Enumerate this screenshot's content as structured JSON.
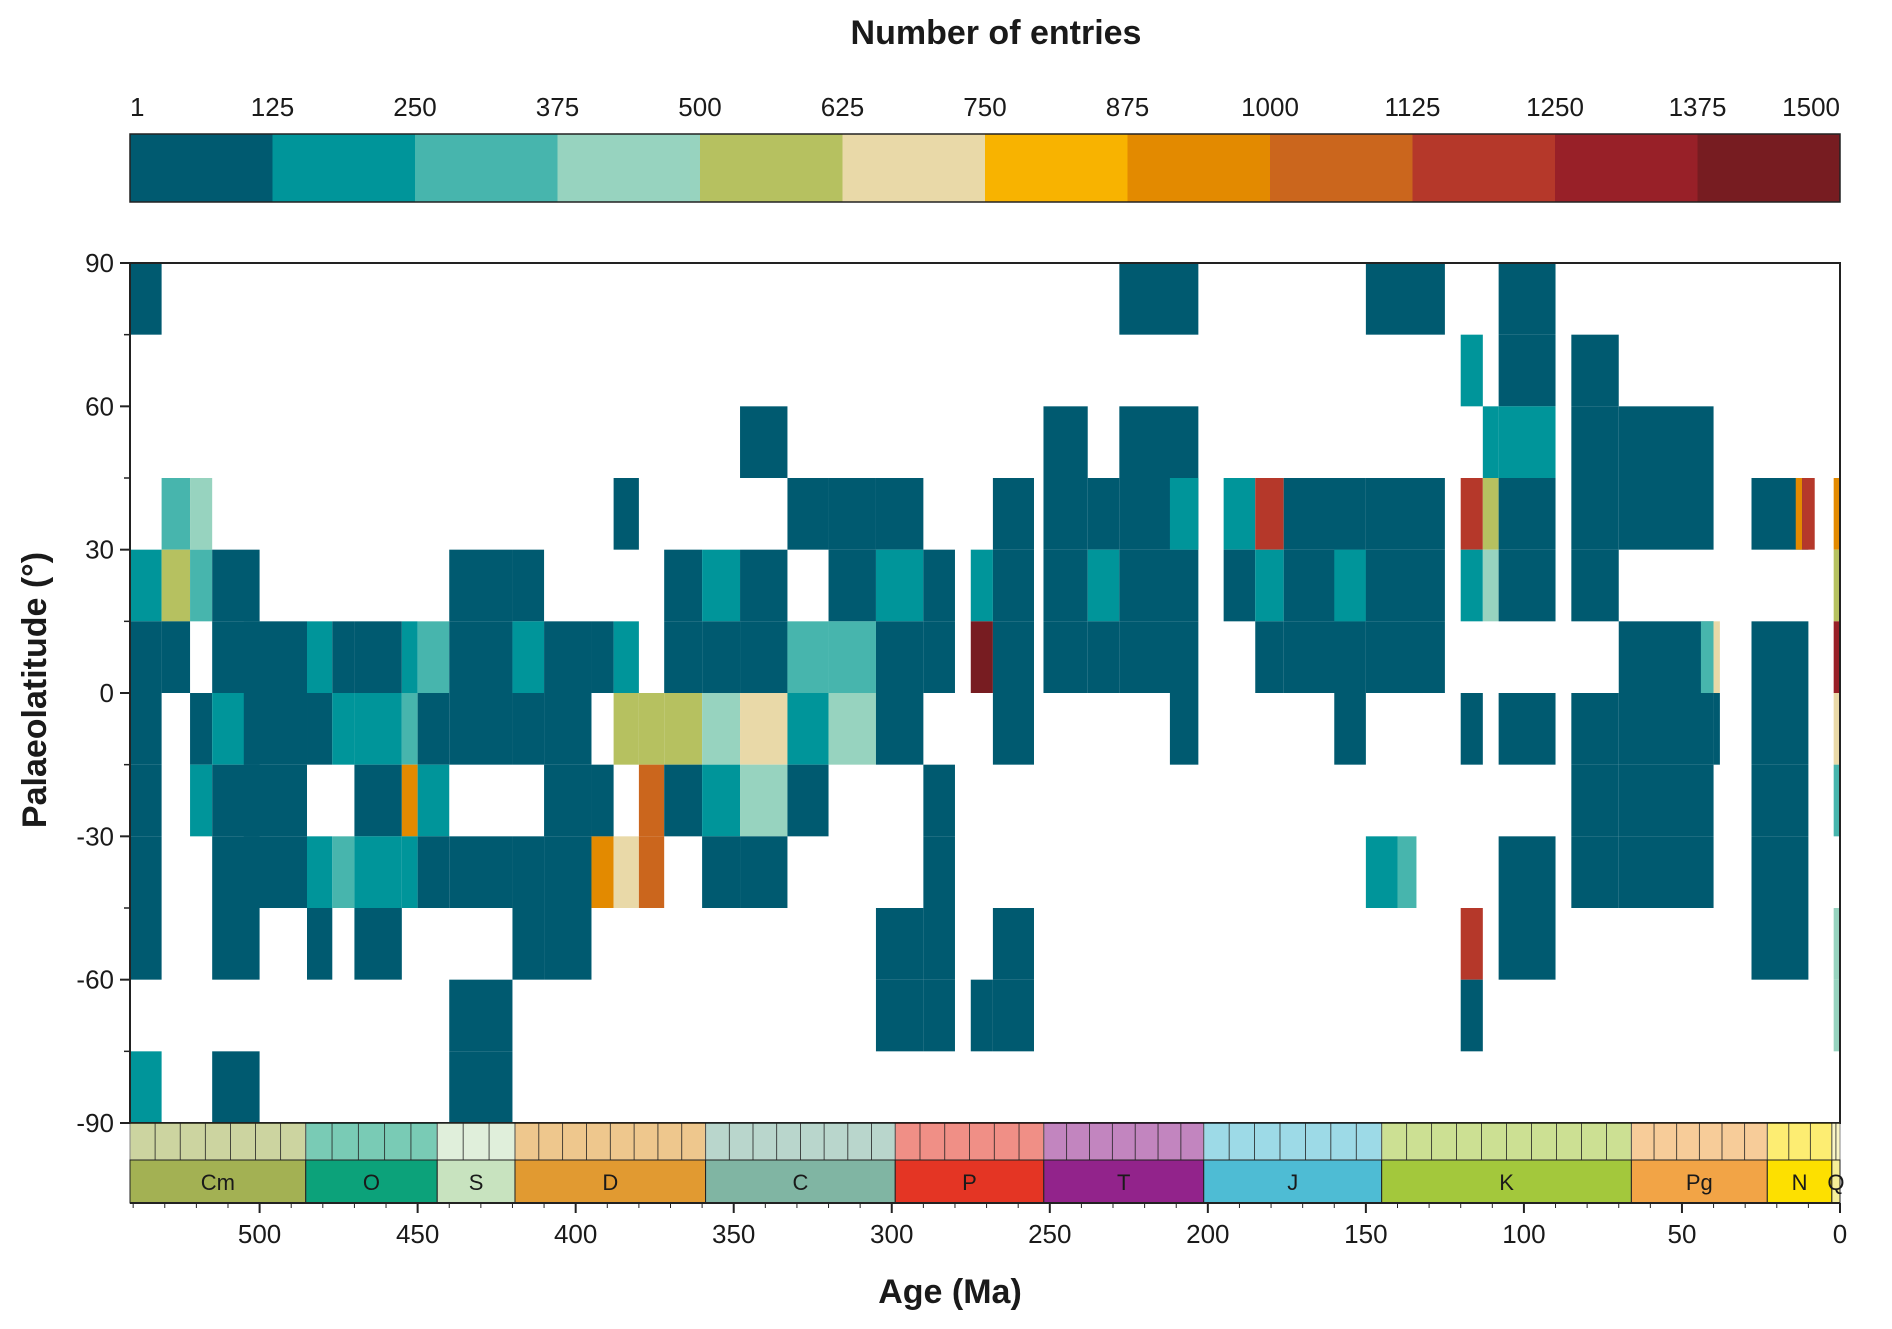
{
  "chart_data": {
    "type": "heatmap",
    "colorbar": {
      "title": "Number of entries",
      "tick_labels": [
        "1",
        "125",
        "250",
        "375",
        "500",
        "625",
        "750",
        "875",
        "1000",
        "1125",
        "1250",
        "1375",
        "1500"
      ],
      "colors": [
        "#005a70",
        "#00959a",
        "#47b5ad",
        "#97d3bf",
        "#b6c160",
        "#e9d9a8",
        "#f8b300",
        "#e38a00",
        "#cb661d",
        "#b5382a",
        "#982028",
        "#771c21"
      ]
    },
    "xaxis": {
      "title": "Age (Ma)",
      "range": [
        541,
        0
      ],
      "tick_values": [
        500,
        450,
        400,
        350,
        300,
        250,
        200,
        150,
        100,
        50,
        0
      ],
      "tick_labels": [
        "500",
        "450",
        "400",
        "350",
        "300",
        "250",
        "200",
        "150",
        "100",
        "50",
        "0"
      ]
    },
    "yaxis": {
      "title": "Palaeolatitude (°)",
      "range": [
        -90,
        90
      ],
      "tick_values": [
        -90,
        -60,
        -30,
        0,
        30,
        60,
        90
      ],
      "tick_labels": [
        "-90",
        "-60",
        "-30",
        "0",
        "30",
        "60",
        "90"
      ]
    },
    "bin_note": "Each cell: [age_start_Ma, age_end_Ma, lat_low, lat_high, count]. Latitude bins 15°; counts approximated from colour classes.",
    "cells": [
      [
        541,
        531,
        75,
        90,
        60
      ],
      [
        541,
        531,
        15,
        30,
        200
      ],
      [
        541,
        531,
        0,
        15,
        60
      ],
      [
        541,
        531,
        -15,
        0,
        60
      ],
      [
        541,
        531,
        -30,
        -15,
        60
      ],
      [
        541,
        531,
        -45,
        -30,
        60
      ],
      [
        541,
        531,
        -60,
        -45,
        60
      ],
      [
        541,
        531,
        -90,
        -75,
        200
      ],
      [
        531,
        522,
        30,
        45,
        300
      ],
      [
        531,
        522,
        15,
        30,
        550
      ],
      [
        531,
        522,
        0,
        15,
        60
      ],
      [
        522,
        515,
        30,
        45,
        430
      ],
      [
        522,
        515,
        15,
        30,
        300
      ],
      [
        522,
        515,
        -15,
        0,
        60
      ],
      [
        522,
        515,
        -30,
        -15,
        200
      ],
      [
        515,
        500,
        15,
        30,
        60
      ],
      [
        515,
        500,
        0,
        15,
        60
      ],
      [
        515,
        500,
        -15,
        0,
        200
      ],
      [
        515,
        500,
        -30,
        -15,
        60
      ],
      [
        515,
        500,
        -45,
        -30,
        60
      ],
      [
        515,
        500,
        -60,
        -45,
        60
      ],
      [
        515,
        500,
        -90,
        -75,
        60
      ],
      [
        505,
        485,
        0,
        15,
        60
      ],
      [
        505,
        485,
        -15,
        0,
        60
      ],
      [
        505,
        485,
        -30,
        -15,
        60
      ],
      [
        505,
        485,
        -45,
        -30,
        60
      ],
      [
        485,
        477,
        0,
        15,
        200
      ],
      [
        485,
        477,
        -15,
        0,
        60
      ],
      [
        485,
        477,
        -45,
        -30,
        200
      ],
      [
        485,
        477,
        -60,
        -45,
        60
      ],
      [
        477,
        470,
        0,
        15,
        60
      ],
      [
        477,
        470,
        -15,
        0,
        200
      ],
      [
        477,
        470,
        -45,
        -30,
        300
      ],
      [
        470,
        455,
        0,
        15,
        60
      ],
      [
        470,
        455,
        -15,
        0,
        200
      ],
      [
        470,
        455,
        -30,
        -15,
        60
      ],
      [
        470,
        455,
        -45,
        -30,
        200
      ],
      [
        470,
        455,
        -60,
        -45,
        60
      ],
      [
        455,
        450,
        0,
        15,
        200
      ],
      [
        455,
        450,
        -15,
        0,
        300
      ],
      [
        455,
        450,
        -30,
        -15,
        900
      ],
      [
        455,
        450,
        -45,
        -30,
        200
      ],
      [
        450,
        440,
        0,
        15,
        300
      ],
      [
        450,
        440,
        -15,
        0,
        60
      ],
      [
        450,
        440,
        -30,
        -15,
        200
      ],
      [
        450,
        440,
        -45,
        -30,
        60
      ],
      [
        440,
        420,
        15,
        30,
        60
      ],
      [
        440,
        420,
        0,
        15,
        60
      ],
      [
        440,
        420,
        -15,
        0,
        60
      ],
      [
        440,
        420,
        -45,
        -30,
        60
      ],
      [
        440,
        420,
        -75,
        -60,
        60
      ],
      [
        440,
        420,
        -90,
        -75,
        60
      ],
      [
        420,
        410,
        15,
        30,
        60
      ],
      [
        420,
        410,
        0,
        15,
        200
      ],
      [
        420,
        410,
        -15,
        0,
        60
      ],
      [
        420,
        410,
        -45,
        -30,
        60
      ],
      [
        420,
        410,
        -60,
        -45,
        60
      ],
      [
        410,
        395,
        0,
        15,
        60
      ],
      [
        410,
        395,
        -15,
        0,
        60
      ],
      [
        410,
        395,
        -30,
        -15,
        60
      ],
      [
        410,
        395,
        -45,
        -30,
        60
      ],
      [
        410,
        395,
        -60,
        -45,
        60
      ],
      [
        395,
        388,
        -45,
        -30,
        900
      ],
      [
        395,
        388,
        -30,
        -15,
        60
      ],
      [
        395,
        388,
        0,
        15,
        60
      ],
      [
        388,
        380,
        30,
        45,
        60
      ],
      [
        388,
        380,
        0,
        15,
        200
      ],
      [
        388,
        380,
        -15,
        0,
        550
      ],
      [
        388,
        380,
        -45,
        -30,
        700
      ],
      [
        380,
        372,
        -15,
        0,
        550
      ],
      [
        380,
        372,
        -30,
        -15,
        1050
      ],
      [
        380,
        372,
        -45,
        -30,
        1050
      ],
      [
        372,
        360,
        15,
        30,
        60
      ],
      [
        372,
        360,
        0,
        15,
        60
      ],
      [
        372,
        360,
        -15,
        0,
        550
      ],
      [
        372,
        360,
        -30,
        -15,
        60
      ],
      [
        360,
        348,
        15,
        30,
        200
      ],
      [
        360,
        348,
        0,
        15,
        60
      ],
      [
        360,
        348,
        -15,
        0,
        430
      ],
      [
        360,
        348,
        -30,
        -15,
        200
      ],
      [
        360,
        348,
        -45,
        -30,
        60
      ],
      [
        348,
        333,
        45,
        60,
        60
      ],
      [
        348,
        333,
        15,
        30,
        60
      ],
      [
        348,
        333,
        0,
        15,
        60
      ],
      [
        348,
        333,
        -15,
        0,
        700
      ],
      [
        348,
        333,
        -30,
        -15,
        430
      ],
      [
        348,
        333,
        -45,
        -30,
        60
      ],
      [
        333,
        320,
        30,
        45,
        60
      ],
      [
        333,
        320,
        0,
        15,
        300
      ],
      [
        333,
        320,
        -15,
        0,
        200
      ],
      [
        333,
        320,
        -30,
        -15,
        60
      ],
      [
        320,
        305,
        30,
        45,
        60
      ],
      [
        320,
        305,
        15,
        30,
        60
      ],
      [
        320,
        305,
        0,
        15,
        300
      ],
      [
        320,
        305,
        -15,
        0,
        430
      ],
      [
        305,
        290,
        30,
        45,
        60
      ],
      [
        305,
        290,
        15,
        30,
        200
      ],
      [
        305,
        290,
        0,
        15,
        60
      ],
      [
        305,
        290,
        -15,
        0,
        60
      ],
      [
        305,
        290,
        -60,
        -45,
        60
      ],
      [
        305,
        290,
        -75,
        -60,
        60
      ],
      [
        290,
        280,
        15,
        30,
        60
      ],
      [
        290,
        280,
        0,
        15,
        60
      ],
      [
        290,
        280,
        -30,
        -15,
        60
      ],
      [
        290,
        280,
        -45,
        -30,
        60
      ],
      [
        290,
        280,
        -60,
        -45,
        60
      ],
      [
        290,
        280,
        -75,
        -60,
        60
      ],
      [
        275,
        268,
        15,
        30,
        200
      ],
      [
        275,
        268,
        0,
        15,
        1450
      ],
      [
        275,
        268,
        -75,
        -60,
        60
      ],
      [
        268,
        255,
        30,
        45,
        60
      ],
      [
        268,
        255,
        15,
        30,
        60
      ],
      [
        268,
        255,
        0,
        15,
        60
      ],
      [
        268,
        255,
        -15,
        0,
        60
      ],
      [
        268,
        255,
        -60,
        -45,
        60
      ],
      [
        268,
        255,
        -75,
        -60,
        60
      ],
      [
        252,
        238,
        45,
        60,
        60
      ],
      [
        252,
        238,
        30,
        45,
        60
      ],
      [
        252,
        238,
        15,
        30,
        60
      ],
      [
        252,
        238,
        0,
        15,
        60
      ],
      [
        238,
        228,
        30,
        45,
        60
      ],
      [
        238,
        228,
        15,
        30,
        200
      ],
      [
        238,
        228,
        0,
        15,
        60
      ],
      [
        228,
        203,
        75,
        90,
        60
      ],
      [
        228,
        203,
        45,
        60,
        60
      ],
      [
        228,
        203,
        30,
        45,
        60
      ],
      [
        228,
        203,
        15,
        30,
        60
      ],
      [
        228,
        203,
        0,
        15,
        60
      ],
      [
        212,
        203,
        30,
        45,
        200
      ],
      [
        212,
        203,
        -15,
        0,
        60
      ],
      [
        195,
        185,
        30,
        45,
        200
      ],
      [
        195,
        185,
        15,
        30,
        60
      ],
      [
        185,
        176,
        30,
        45,
        1200
      ],
      [
        185,
        176,
        15,
        30,
        200
      ],
      [
        185,
        176,
        0,
        15,
        60
      ],
      [
        176,
        150,
        30,
        45,
        60
      ],
      [
        176,
        150,
        15,
        30,
        60
      ],
      [
        176,
        150,
        0,
        15,
        60
      ],
      [
        160,
        150,
        15,
        30,
        200
      ],
      [
        160,
        150,
        -15,
        0,
        60
      ],
      [
        150,
        125,
        75,
        90,
        60
      ],
      [
        150,
        125,
        30,
        45,
        60
      ],
      [
        150,
        125,
        15,
        30,
        60
      ],
      [
        150,
        125,
        0,
        15,
        60
      ],
      [
        150,
        140,
        -45,
        -30,
        200
      ],
      [
        140,
        134,
        -45,
        -30,
        300
      ],
      [
        120,
        113,
        60,
        75,
        200
      ],
      [
        120,
        113,
        30,
        45,
        1200
      ],
      [
        120,
        113,
        15,
        30,
        200
      ],
      [
        120,
        113,
        -15,
        0,
        60
      ],
      [
        120,
        113,
        -60,
        -45,
        1200
      ],
      [
        120,
        113,
        -75,
        -60,
        60
      ],
      [
        113,
        108,
        45,
        60,
        200
      ],
      [
        113,
        108,
        30,
        45,
        550
      ],
      [
        113,
        108,
        15,
        30,
        430
      ],
      [
        108,
        90,
        75,
        90,
        60
      ],
      [
        108,
        90,
        60,
        75,
        60
      ],
      [
        108,
        90,
        45,
        60,
        200
      ],
      [
        108,
        90,
        30,
        45,
        60
      ],
      [
        108,
        90,
        15,
        30,
        60
      ],
      [
        108,
        90,
        -15,
        0,
        60
      ],
      [
        108,
        90,
        -45,
        -30,
        60
      ],
      [
        108,
        90,
        -60,
        -45,
        60
      ],
      [
        85,
        70,
        60,
        75,
        60
      ],
      [
        85,
        70,
        45,
        60,
        60
      ],
      [
        85,
        70,
        30,
        45,
        60
      ],
      [
        85,
        70,
        15,
        30,
        60
      ],
      [
        85,
        70,
        -15,
        0,
        60
      ],
      [
        85,
        70,
        -30,
        -15,
        60
      ],
      [
        85,
        70,
        -45,
        -30,
        60
      ],
      [
        70,
        40,
        45,
        60,
        60
      ],
      [
        70,
        40,
        30,
        45,
        60
      ],
      [
        70,
        40,
        0,
        15,
        60
      ],
      [
        70,
        40,
        -15,
        0,
        60
      ],
      [
        70,
        40,
        -30,
        -15,
        60
      ],
      [
        70,
        40,
        -45,
        -30,
        60
      ],
      [
        44,
        40,
        0,
        15,
        300
      ],
      [
        40,
        38,
        0,
        15,
        700
      ],
      [
        40,
        38,
        -15,
        0,
        60
      ],
      [
        28,
        10,
        30,
        45,
        60
      ],
      [
        28,
        10,
        0,
        15,
        60
      ],
      [
        28,
        10,
        -15,
        0,
        60
      ],
      [
        28,
        10,
        -30,
        -15,
        60
      ],
      [
        28,
        10,
        -45,
        -30,
        60
      ],
      [
        28,
        10,
        -60,
        -45,
        60
      ],
      [
        14,
        12,
        30,
        45,
        950
      ],
      [
        12,
        8,
        30,
        45,
        1200
      ],
      [
        2,
        0,
        30,
        45,
        950
      ],
      [
        2,
        0,
        15,
        30,
        550
      ],
      [
        2,
        0,
        0,
        15,
        1300
      ],
      [
        2,
        0,
        -15,
        0,
        700
      ],
      [
        2,
        0,
        -30,
        -15,
        300
      ],
      [
        2,
        0,
        -60,
        -45,
        430
      ],
      [
        2,
        0,
        -75,
        -60,
        430
      ]
    ],
    "timescale": {
      "periods": [
        {
          "label": "Cm",
          "start": 541,
          "end": 485.4,
          "color": "#a3b153"
        },
        {
          "label": "O",
          "start": 485.4,
          "end": 443.8,
          "color": "#0ca27a"
        },
        {
          "label": "S",
          "start": 443.8,
          "end": 419.2,
          "color": "#c8e3bf"
        },
        {
          "label": "D",
          "start": 419.2,
          "end": 358.9,
          "color": "#e19a31"
        },
        {
          "label": "C",
          "start": 358.9,
          "end": 298.9,
          "color": "#80b5a3"
        },
        {
          "label": "P",
          "start": 298.9,
          "end": 251.9,
          "color": "#e43524"
        },
        {
          "label": "T",
          "start": 251.9,
          "end": 201.3,
          "color": "#92238b"
        },
        {
          "label": "J",
          "start": 201.3,
          "end": 145,
          "color": "#4ebcd4"
        },
        {
          "label": "K",
          "start": 145,
          "end": 66,
          "color": "#a3c83c"
        },
        {
          "label": "Pg",
          "start": 66,
          "end": 23,
          "color": "#f2a446"
        },
        {
          "label": "N",
          "start": 23,
          "end": 2.58,
          "color": "#fde000"
        },
        {
          "label": "Q",
          "start": 2.58,
          "end": 0,
          "color": "#f6ef98"
        }
      ]
    }
  }
}
